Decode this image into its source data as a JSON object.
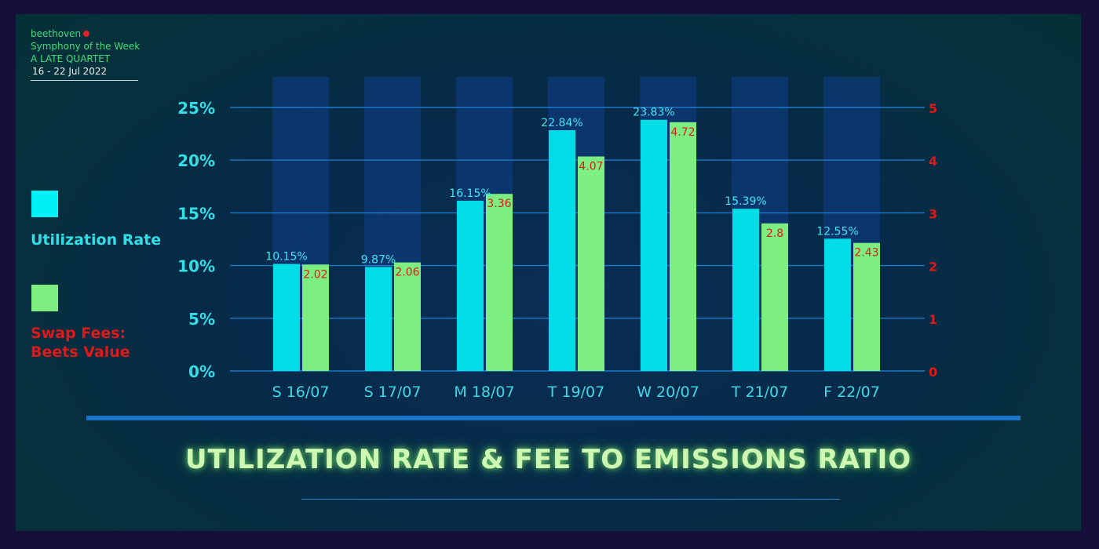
{
  "brand": {
    "name": "beethoven",
    "line1": "Symphony of the Week",
    "line2": "A LATE QUARTET",
    "date_range": "16 - 22 Jul 2022"
  },
  "legend": {
    "items": [
      {
        "label_line1": "Utilization Rate",
        "label_line2": "",
        "swatch_color": "#00f0f5",
        "text_color": "#33dfe6"
      },
      {
        "label_line1": "Swap Fees:",
        "label_line2": "Beets Value",
        "swatch_color": "#7def80",
        "text_color": "#e01818"
      }
    ]
  },
  "chart_data": {
    "type": "bar",
    "title": "UTILIZATION RATE & FEE TO EMISSIONS RATIO",
    "categories": [
      "S 16/07",
      "S 17/07",
      "M 18/07",
      "T 19/07",
      "W 20/07",
      "T 21/07",
      "F 22/07"
    ],
    "series": [
      {
        "name": "Utilization Rate",
        "axis": "left",
        "values": [
          10.15,
          9.87,
          16.15,
          22.84,
          23.83,
          15.39,
          12.55
        ],
        "labels": [
          "10.15%",
          "9.87%",
          "16.15%",
          "22.84%",
          "23.83%",
          "15.39%",
          "12.55%"
        ],
        "color": "#00dde6",
        "label_color": "#3fe6f2"
      },
      {
        "name": "Swap Fees: Beets Value",
        "axis": "right",
        "values": [
          2.02,
          2.06,
          3.36,
          4.07,
          4.72,
          2.8,
          2.43
        ],
        "labels": [
          "2.02",
          "2.06",
          "3.36",
          "4.07",
          "4.72",
          "2.8",
          "2.43"
        ],
        "color": "#7def80",
        "label_color": "#e01818"
      }
    ],
    "y_left": {
      "ylim": [
        0,
        25
      ],
      "ticks": [
        0,
        5,
        10,
        15,
        20,
        25
      ],
      "tick_labels": [
        "0%",
        "5%",
        "10%",
        "15%",
        "20%",
        "25%"
      ],
      "color": "#33dfe6"
    },
    "y_right": {
      "ylim": [
        0,
        5
      ],
      "ticks": [
        0,
        1,
        2,
        3,
        4,
        5
      ],
      "tick_labels": [
        "0",
        "1",
        "2",
        "3",
        "4",
        "5"
      ],
      "color": "#e01818"
    },
    "grid": true,
    "colors": {
      "gridline": "#1e78c8",
      "column_band": "#0d3a78",
      "category_label": "#3fd9e6"
    }
  }
}
